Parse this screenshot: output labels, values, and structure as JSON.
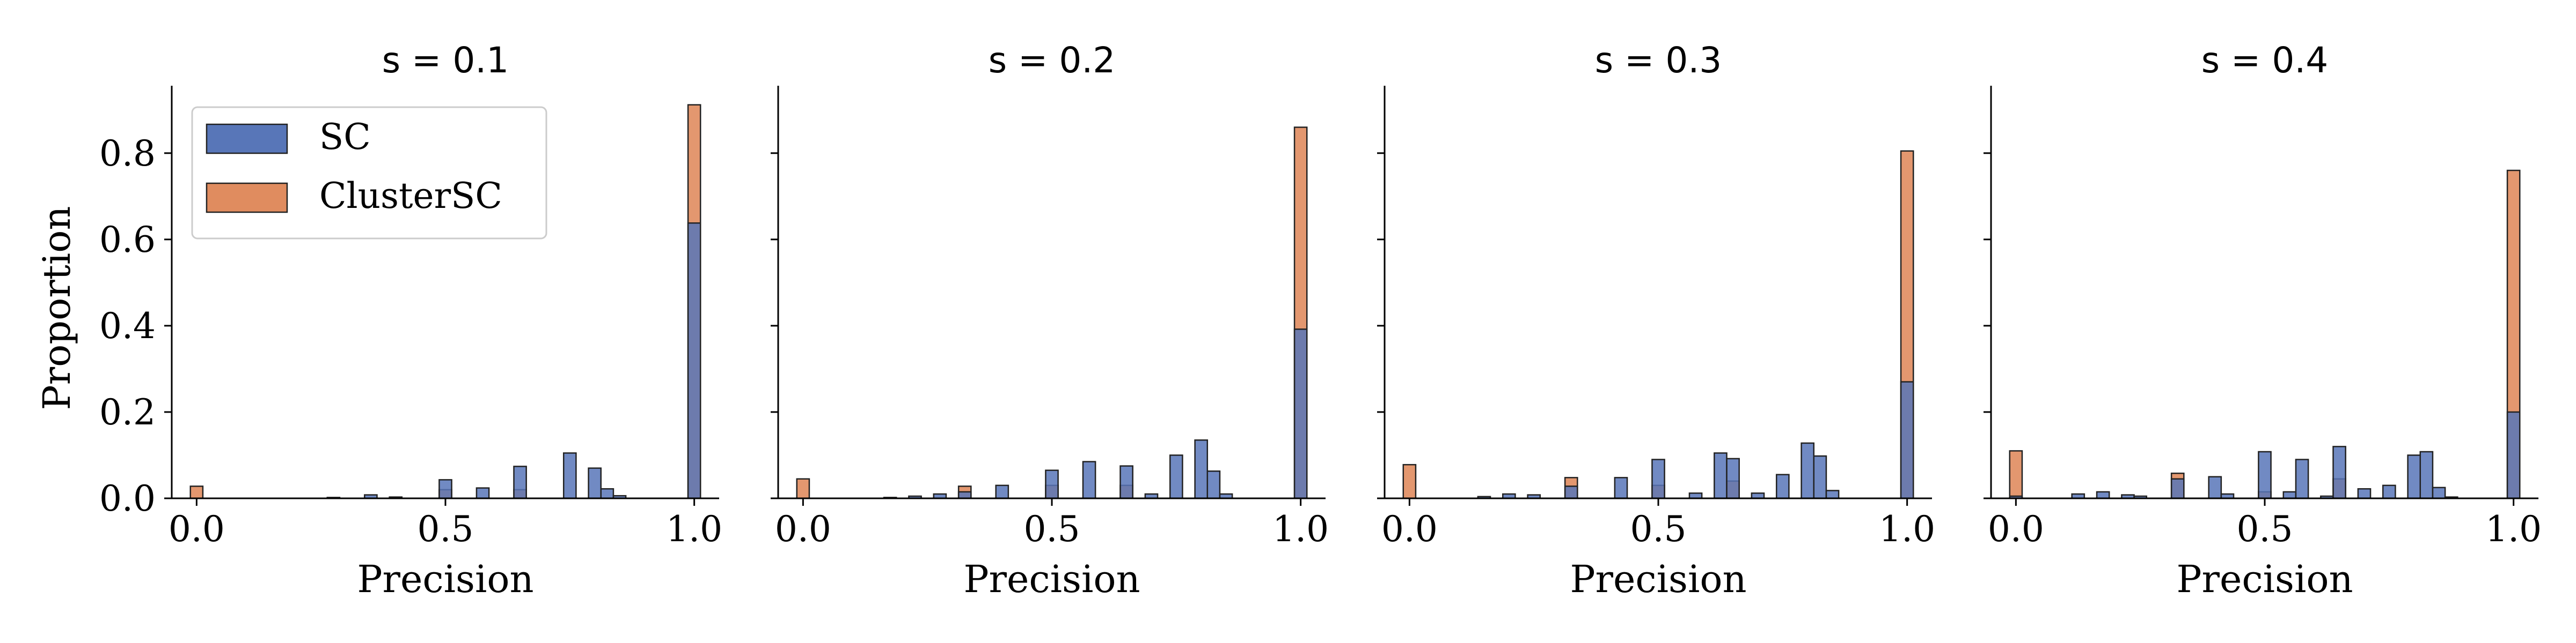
{
  "figure": {
    "ylabel": "Proportion",
    "legend": {
      "placement": "upper-left of first panel",
      "entries": [
        {
          "label": "SC",
          "color": "#5876b8"
        },
        {
          "label": "ClusterSC",
          "color": "#e08c5f"
        }
      ]
    }
  },
  "chart_data": [
    {
      "type": "bar",
      "title": "s = 0.1",
      "xlabel": "Precision",
      "xlim": [
        -0.05,
        1.05
      ],
      "ylim": [
        0,
        0.95
      ],
      "xticks": [
        "0.0",
        "0.5",
        "1.0"
      ],
      "yticks": [
        "0.0",
        "0.2",
        "0.4",
        "0.6",
        "0.8"
      ],
      "bin_width": 0.025,
      "series": [
        {
          "name": "SC",
          "x": [
            0.275,
            0.35,
            0.4,
            0.5,
            0.575,
            0.65,
            0.75,
            0.8,
            0.825,
            0.85,
            1.0
          ],
          "values": [
            0.002,
            0.008,
            0.003,
            0.043,
            0.024,
            0.074,
            0.105,
            0.07,
            0.022,
            0.006,
            0.638
          ]
        },
        {
          "name": "ClusterSC",
          "x": [
            0.0,
            0.5,
            0.65,
            1.0
          ],
          "values": [
            0.028,
            0.02,
            0.02,
            0.912
          ]
        }
      ]
    },
    {
      "type": "bar",
      "title": "s = 0.2",
      "xlabel": "Precision",
      "xlim": [
        -0.05,
        1.05
      ],
      "ylim": [
        0,
        0.95
      ],
      "xticks": [
        "0.0",
        "0.5",
        "1.0"
      ],
      "yticks": [
        "0.0",
        "0.2",
        "0.4",
        "0.6",
        "0.8"
      ],
      "bin_width": 0.025,
      "series": [
        {
          "name": "SC",
          "x": [
            0.175,
            0.225,
            0.275,
            0.325,
            0.4,
            0.5,
            0.575,
            0.65,
            0.7,
            0.75,
            0.8,
            0.825,
            0.85,
            1.0
          ],
          "values": [
            0.002,
            0.005,
            0.01,
            0.015,
            0.03,
            0.065,
            0.085,
            0.075,
            0.01,
            0.1,
            0.135,
            0.063,
            0.01,
            0.392
          ]
        },
        {
          "name": "ClusterSC",
          "x": [
            0.0,
            0.325,
            0.5,
            0.65,
            1.0
          ],
          "values": [
            0.045,
            0.028,
            0.03,
            0.03,
            0.86
          ]
        }
      ]
    },
    {
      "type": "bar",
      "title": "s = 0.3",
      "xlabel": "Precision",
      "xlim": [
        -0.05,
        1.05
      ],
      "ylim": [
        0,
        0.95
      ],
      "xticks": [
        "0.0",
        "0.5",
        "1.0"
      ],
      "yticks": [
        "0.0",
        "0.2",
        "0.4",
        "0.6",
        "0.8"
      ],
      "bin_width": 0.025,
      "series": [
        {
          "name": "SC",
          "x": [
            0.15,
            0.2,
            0.25,
            0.325,
            0.425,
            0.5,
            0.575,
            0.625,
            0.65,
            0.7,
            0.75,
            0.8,
            0.825,
            0.85,
            1.0
          ],
          "values": [
            0.004,
            0.01,
            0.008,
            0.028,
            0.048,
            0.09,
            0.012,
            0.105,
            0.092,
            0.012,
            0.055,
            0.128,
            0.098,
            0.018,
            0.27
          ]
        },
        {
          "name": "ClusterSC",
          "x": [
            0.0,
            0.325,
            0.5,
            0.65,
            1.0
          ],
          "values": [
            0.078,
            0.048,
            0.03,
            0.04,
            0.805
          ]
        }
      ]
    },
    {
      "type": "bar",
      "title": "s = 0.4",
      "xlabel": "Precision",
      "xlim": [
        -0.05,
        1.05
      ],
      "ylim": [
        0,
        0.95
      ],
      "xticks": [
        "0.0",
        "0.5",
        "1.0"
      ],
      "yticks": [
        "0.0",
        "0.2",
        "0.4",
        "0.6",
        "0.8"
      ],
      "bin_width": 0.025,
      "series": [
        {
          "name": "SC",
          "x": [
            0.0,
            0.125,
            0.175,
            0.225,
            0.25,
            0.325,
            0.4,
            0.425,
            0.5,
            0.55,
            0.575,
            0.625,
            0.65,
            0.7,
            0.75,
            0.8,
            0.825,
            0.85,
            0.875,
            1.0
          ],
          "values": [
            0.005,
            0.01,
            0.015,
            0.008,
            0.005,
            0.045,
            0.05,
            0.01,
            0.108,
            0.015,
            0.09,
            0.005,
            0.12,
            0.022,
            0.03,
            0.1,
            0.108,
            0.025,
            0.003,
            0.2
          ]
        },
        {
          "name": "ClusterSC",
          "x": [
            0.0,
            0.325,
            0.5,
            0.65,
            1.0
          ],
          "values": [
            0.11,
            0.058,
            0.015,
            0.045,
            0.76
          ]
        }
      ]
    }
  ]
}
